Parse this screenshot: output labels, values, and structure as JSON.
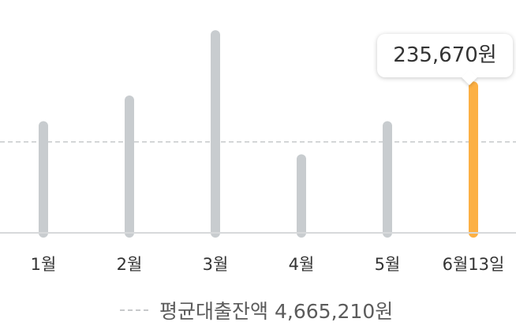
{
  "chart_data": {
    "type": "bar",
    "categories": [
      "1월",
      "2월",
      "3월",
      "4월",
      "5월",
      "6월13일"
    ],
    "values": [
      135000,
      166000,
      245000,
      95000,
      135000,
      183000
    ],
    "highlight_index": 5,
    "tooltip": "235,670원",
    "average": {
      "label": "평균대출잔액",
      "value_text": "4,665,210원",
      "value": 110000
    },
    "ylim": [
      0,
      250000
    ],
    "grid": false,
    "colors": {
      "bar": "#c8cccf",
      "highlight": "#fcb044",
      "average_line": "#c7c9cb",
      "baseline": "#d7d9db"
    }
  }
}
